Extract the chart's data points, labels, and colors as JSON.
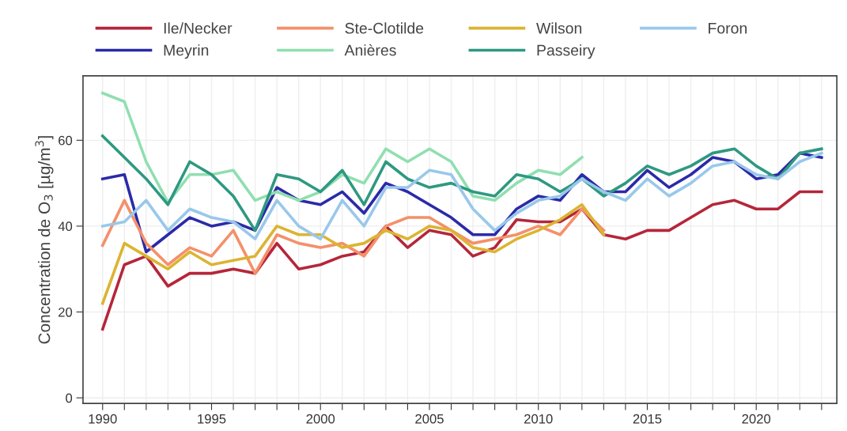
{
  "chart_data": {
    "type": "line",
    "ylabel": "Concentration de O$_{3}$ [µg/m$^{3}$]",
    "x": [
      1990,
      1991,
      1992,
      1993,
      1994,
      1995,
      1996,
      1997,
      1998,
      1999,
      2000,
      2001,
      2002,
      2003,
      2004,
      2005,
      2006,
      2007,
      2008,
      2009,
      2010,
      2011,
      2012,
      2013,
      2014,
      2015,
      2016,
      2017,
      2018,
      2019,
      2020,
      2021,
      2022,
      2023
    ],
    "series": [
      {
        "name": "Ile/Necker",
        "color": "#b5263a",
        "values": [
          16,
          31,
          33,
          26,
          29,
          29,
          30,
          29,
          36,
          30,
          31,
          33,
          34,
          40,
          35,
          39,
          38,
          33,
          35,
          41.5,
          41,
          41,
          44,
          38,
          37,
          39,
          39,
          42,
          45,
          46,
          44,
          44,
          48,
          48
        ]
      },
      {
        "name": "Meyrin",
        "color": "#2b2aa8",
        "values": [
          51,
          52,
          34,
          38,
          42,
          40,
          41,
          39,
          49,
          46,
          45,
          48,
          43,
          50,
          48,
          45,
          42,
          38,
          38,
          44,
          47,
          46,
          52,
          48,
          48,
          53,
          49,
          52,
          56,
          55,
          51,
          52,
          57,
          56
        ]
      },
      {
        "name": "Ste-Clotilde",
        "color": "#f4906a",
        "values": [
          35.5,
          46,
          36,
          31,
          35,
          33,
          39,
          29,
          38,
          36,
          35,
          36,
          33,
          40,
          42,
          42,
          39,
          36,
          37,
          38,
          40,
          38,
          44,
          39,
          null,
          null,
          null,
          null,
          null,
          null,
          null,
          null,
          null,
          null
        ]
      },
      {
        "name": "Anières",
        "color": "#90dfb0",
        "values": [
          71,
          69,
          55,
          45.5,
          52,
          52,
          53,
          46,
          48,
          46,
          48,
          52,
          50,
          58,
          55,
          58,
          55,
          47,
          46,
          50,
          53,
          52,
          56,
          null,
          null,
          null,
          null,
          null,
          null,
          null,
          null,
          null,
          null,
          null
        ]
      },
      {
        "name": "Wilson",
        "color": "#dcb432",
        "values": [
          22,
          36,
          33,
          30,
          34,
          31,
          32,
          33,
          40,
          38,
          38,
          35,
          36,
          39,
          37,
          40,
          39,
          35,
          34,
          37,
          39,
          41.5,
          45,
          38,
          null,
          null,
          null,
          null,
          null,
          null,
          null,
          null,
          null,
          null
        ]
      },
      {
        "name": "Passeiry",
        "color": "#2e9980",
        "values": [
          61,
          56,
          51,
          45,
          55,
          52,
          47,
          39,
          52,
          51,
          48,
          53,
          45,
          55,
          51,
          49,
          50,
          48,
          47,
          52,
          51,
          48,
          51,
          47,
          50,
          54,
          52,
          54,
          57,
          58,
          54,
          51,
          57,
          58
        ]
      },
      {
        "name": "Foron",
        "color": "#99c8ea",
        "values": [
          40,
          41,
          46,
          39,
          44,
          42,
          41,
          37,
          46,
          40,
          37,
          46,
          40,
          49,
          49,
          53,
          52,
          44,
          39,
          43,
          46,
          47,
          51,
          48,
          46,
          51,
          47,
          50,
          54,
          55,
          52,
          51,
          55,
          57
        ]
      }
    ],
    "xlim": [
      1989.1,
      2023.7
    ],
    "xticks": [
      1990,
      {
        "value": 1991,
        "label": null
      },
      {
        "value": 1992,
        "label": null
      },
      {
        "value": 1993,
        "label": null
      },
      {
        "value": 1994,
        "label": null
      },
      1995,
      {
        "value": 1996,
        "label": null
      },
      {
        "value": 1997,
        "label": null
      },
      {
        "value": 1998,
        "label": null
      },
      {
        "value": 1999,
        "label": null
      },
      2000,
      {
        "value": 2001,
        "label": null
      },
      {
        "value": 2002,
        "label": null
      },
      {
        "value": 2003,
        "label": null
      },
      {
        "value": 2004,
        "label": null
      },
      2005,
      {
        "value": 2006,
        "label": null
      },
      {
        "value": 2007,
        "label": null
      },
      {
        "value": 2008,
        "label": null
      },
      {
        "value": 2009,
        "label": null
      },
      2010,
      {
        "value": 2011,
        "label": null
      },
      {
        "value": 2012,
        "label": null
      },
      {
        "value": 2013,
        "label": null
      },
      {
        "value": 2014,
        "label": null
      },
      2015,
      {
        "value": 2016,
        "label": null
      },
      {
        "value": 2017,
        "label": null
      },
      {
        "value": 2018,
        "label": null
      },
      {
        "value": 2019,
        "label": null
      },
      2020,
      {
        "value": 2021,
        "label": null
      },
      {
        "value": 2022,
        "label": null
      },
      {
        "value": 2023,
        "label": null
      }
    ],
    "ylim": [
      -1.3,
      75
    ],
    "yticks": [
      0,
      20,
      40,
      60
    ],
    "grid": true,
    "legend": "top left",
    "line_style": "solid",
    "marker": "none"
  }
}
